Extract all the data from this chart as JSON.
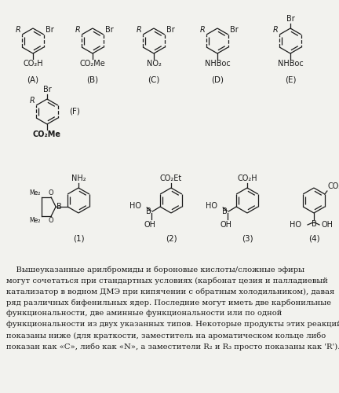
{
  "bg_color": "#f2f2ee",
  "text_color": "#1a1a1a",
  "font_size_text": 7.2,
  "font_size_label": 7.5,
  "font_size_chem": 7.0,
  "text_lines": [
    "    Вышеуказанные арилбромиды и бороновые кислоты/сложные эфиры",
    "могут сочетаться при стандартных условиях (карбонат цезия и палладиевый",
    "катализатор в водном ДМЭ при кипячении с обратным холодильником), давая",
    "ряд различных бифенильных ядер. Последние могут иметь две карбонильные",
    "функциональности, две аминные функциональности или по одной",
    "функциональности из двух указанных типов. Некоторые продукты этих реакций",
    "показаны ниже (для краткости, заместитель на ароматическом кольце либо",
    "показан как «C», либо как «N», а заместители R₂ и R₃ просто показаны как 'R')."
  ]
}
